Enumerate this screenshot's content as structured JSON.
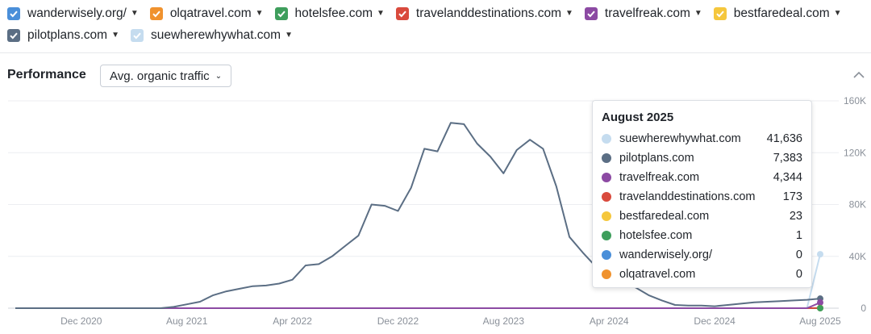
{
  "legend": {
    "items": [
      {
        "label": "wanderwisely.org/",
        "color": "#4a8fd9"
      },
      {
        "label": "olqatravel.com",
        "color": "#f0922e"
      },
      {
        "label": "hotelsfee.com",
        "color": "#3e9e5c"
      },
      {
        "label": "travelanddestinations.com",
        "color": "#d94a3d"
      },
      {
        "label": "travelfreak.com",
        "color": "#8c4aa3"
      },
      {
        "label": "bestfaredeal.com",
        "color": "#f5c73d"
      },
      {
        "label": "pilotplans.com",
        "color": "#5b6e84"
      },
      {
        "label": "suewherewhywhat.com",
        "color": "#c5dcef"
      }
    ]
  },
  "performance": {
    "title": "Performance",
    "metric_select": "Avg. organic traffic",
    "collapse_icon": "chevron-up-icon"
  },
  "chart_data": {
    "type": "line",
    "x_tick_labels": [
      "Dec 2020",
      "Aug 2021",
      "Apr 2022",
      "Dec 2022",
      "Aug 2023",
      "Apr 2024",
      "Dec 2024",
      "Aug 2025"
    ],
    "y_tick_labels": [
      "160K",
      "120K",
      "80K",
      "40K",
      "0"
    ],
    "ylim": [
      0,
      160000
    ],
    "x_start": "2020-07",
    "x_end": "2025-08",
    "grid": true,
    "series": [
      {
        "name": "pilotplans.com",
        "color": "#5b6e84",
        "values": [
          0,
          0,
          0,
          0,
          0,
          0,
          0,
          0,
          0,
          0,
          0,
          0,
          1000,
          3000,
          5000,
          10000,
          13000,
          15000,
          17000,
          17500,
          19000,
          22000,
          33000,
          34000,
          40000,
          48000,
          56000,
          80000,
          79000,
          75000,
          93000,
          123000,
          121000,
          143000,
          142000,
          127000,
          117000,
          104000,
          122000,
          130000,
          123000,
          94000,
          55000,
          43000,
          32000,
          26000,
          21000,
          16000,
          10000,
          6000,
          2500,
          2000,
          2000,
          1500,
          2500,
          3500,
          4500,
          5000,
          5500,
          6000,
          6500,
          7383
        ]
      },
      {
        "name": "travelfreak.com",
        "color": "#8c4aa3",
        "values": [
          0,
          0,
          0,
          0,
          0,
          0,
          0,
          0,
          0,
          0,
          0,
          0,
          0,
          0,
          0,
          0,
          0,
          0,
          0,
          0,
          0,
          0,
          0,
          0,
          0,
          0,
          0,
          0,
          0,
          0,
          0,
          0,
          0,
          0,
          0,
          0,
          0,
          0,
          0,
          0,
          0,
          0,
          0,
          0,
          0,
          0,
          0,
          0,
          0,
          0,
          0,
          0,
          0,
          0,
          0,
          0,
          0,
          0,
          0,
          0,
          0,
          4344
        ]
      },
      {
        "name": "travelanddestinations.com",
        "color": "#d94a3d",
        "values": [
          0,
          0,
          0,
          0,
          0,
          0,
          0,
          0,
          0,
          0,
          0,
          0,
          0,
          0,
          0,
          0,
          0,
          0,
          0,
          0,
          0,
          0,
          0,
          0,
          0,
          0,
          0,
          0,
          0,
          0,
          0,
          0,
          0,
          0,
          0,
          0,
          0,
          0,
          0,
          0,
          0,
          0,
          0,
          0,
          0,
          0,
          0,
          0,
          0,
          0,
          0,
          0,
          0,
          0,
          0,
          0,
          0,
          0,
          0,
          0,
          0,
          173
        ]
      },
      {
        "name": "suewherewhywhat.com",
        "color": "#c5dcef",
        "values": [
          0,
          0,
          0,
          0,
          0,
          0,
          0,
          0,
          0,
          0,
          0,
          0,
          0,
          0,
          0,
          0,
          0,
          0,
          0,
          0,
          0,
          0,
          0,
          0,
          0,
          0,
          0,
          0,
          0,
          0,
          0,
          0,
          0,
          0,
          0,
          0,
          0,
          0,
          0,
          0,
          0,
          0,
          0,
          0,
          0,
          0,
          0,
          0,
          0,
          0,
          0,
          0,
          0,
          0,
          0,
          0,
          0,
          0,
          0,
          0,
          0,
          41636
        ]
      },
      {
        "name": "bestfaredeal.com",
        "color": "#f5c73d",
        "values": [
          0,
          0,
          0,
          0,
          0,
          0,
          0,
          0,
          0,
          0,
          0,
          0,
          0,
          0,
          0,
          0,
          0,
          0,
          0,
          0,
          0,
          0,
          0,
          0,
          0,
          0,
          0,
          0,
          0,
          0,
          0,
          0,
          0,
          0,
          0,
          0,
          0,
          0,
          0,
          0,
          0,
          0,
          0,
          0,
          0,
          0,
          0,
          0,
          0,
          0,
          0,
          0,
          0,
          0,
          0,
          0,
          0,
          0,
          0,
          0,
          0,
          23
        ]
      },
      {
        "name": "hotelsfee.com",
        "color": "#3e9e5c",
        "values": [
          0,
          0,
          0,
          0,
          0,
          0,
          0,
          0,
          0,
          0,
          0,
          0,
          0,
          0,
          0,
          0,
          0,
          0,
          0,
          0,
          0,
          0,
          0,
          0,
          0,
          0,
          0,
          0,
          0,
          0,
          0,
          0,
          0,
          0,
          0,
          0,
          0,
          0,
          0,
          0,
          0,
          0,
          0,
          0,
          0,
          0,
          0,
          0,
          0,
          0,
          0,
          0,
          0,
          0,
          0,
          0,
          0,
          0,
          0,
          0,
          0,
          1
        ]
      }
    ]
  },
  "tooltip": {
    "title": "August 2025",
    "rows": [
      {
        "name": "suewherewhywhat.com",
        "value": "41,636",
        "color": "#c5dcef"
      },
      {
        "name": "pilotplans.com",
        "value": "7,383",
        "color": "#5b6e84"
      },
      {
        "name": "travelfreak.com",
        "value": "4,344",
        "color": "#8c4aa3"
      },
      {
        "name": "travelanddestinations.com",
        "value": "173",
        "color": "#d94a3d"
      },
      {
        "name": "bestfaredeal.com",
        "value": "23",
        "color": "#f5c73d"
      },
      {
        "name": "hotelsfee.com",
        "value": "1",
        "color": "#3e9e5c"
      },
      {
        "name": "wanderwisely.org/",
        "value": "0",
        "color": "#4a8fd9"
      },
      {
        "name": "olqatravel.com",
        "value": "0",
        "color": "#f0922e"
      }
    ]
  }
}
